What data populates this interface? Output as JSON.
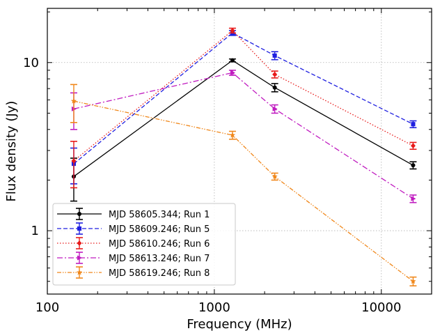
{
  "chart_data": {
    "type": "line",
    "title": "",
    "xlabel": "Frequency (MHz)",
    "ylabel": "Flux density (Jy)",
    "xscale": "log",
    "yscale": "log",
    "xlim": [
      100,
      20000
    ],
    "ylim": [
      0.42,
      21
    ],
    "x_ticks": [
      {
        "value": 100,
        "label": "100"
      },
      {
        "value": 1000,
        "label": "1000"
      },
      {
        "value": 10000,
        "label": "10000"
      }
    ],
    "y_ticks": [
      {
        "value": 1,
        "label": "1"
      },
      {
        "value": 10,
        "label": "10"
      }
    ],
    "grid": true,
    "legend_position": "lower-left",
    "series": [
      {
        "name": "MJD 58605.344; Run 1",
        "color": "#000000",
        "dash": "solid",
        "marker": "circle",
        "points": [
          {
            "x": 144,
            "y": 2.1,
            "yerr": [
              0.6,
              0.6
            ]
          },
          {
            "x": 1284,
            "y": 10.3,
            "yerr": [
              0.2,
              0.2
            ]
          },
          {
            "x": 2300,
            "y": 7.1,
            "yerr": [
              0.4,
              0.4
            ]
          },
          {
            "x": 15500,
            "y": 2.45,
            "yerr": [
              0.12,
              0.12
            ]
          }
        ]
      },
      {
        "name": "MJD 58609.246; Run 5",
        "color": "#1f1fe0",
        "dash": "dashed",
        "marker": "square",
        "points": [
          {
            "x": 144,
            "y": 2.5,
            "yerr": [
              0.6,
              0.6
            ]
          },
          {
            "x": 1284,
            "y": 15.0,
            "yerr": [
              0.5,
              0.5
            ]
          },
          {
            "x": 2300,
            "y": 11.0,
            "yerr": [
              0.6,
              0.6
            ]
          },
          {
            "x": 15500,
            "y": 4.3,
            "yerr": [
              0.2,
              0.2
            ]
          }
        ]
      },
      {
        "name": "MJD 58610.246; Run 6",
        "color": "#e81a1a",
        "dash": "dotted",
        "marker": "diamond",
        "points": [
          {
            "x": 144,
            "y": 2.6,
            "yerr": [
              0.8,
              0.8
            ]
          },
          {
            "x": 1284,
            "y": 15.5,
            "yerr": [
              0.5,
              0.5
            ]
          },
          {
            "x": 2300,
            "y": 8.5,
            "yerr": [
              0.4,
              0.4
            ]
          },
          {
            "x": 15500,
            "y": 3.2,
            "yerr": [
              0.15,
              0.15
            ]
          }
        ]
      },
      {
        "name": "MJD 58613.246; Run 7",
        "color": "#c01bc0",
        "dash": "dashdot",
        "marker": "triangle",
        "points": [
          {
            "x": 144,
            "y": 5.3,
            "yerr": [
              1.3,
              1.3
            ]
          },
          {
            "x": 1284,
            "y": 8.7,
            "yerr": [
              0.3,
              0.3
            ]
          },
          {
            "x": 2300,
            "y": 5.3,
            "yerr": [
              0.3,
              0.3
            ]
          },
          {
            "x": 15500,
            "y": 1.55,
            "yerr": [
              0.08,
              0.08
            ]
          }
        ]
      },
      {
        "name": "MJD 58619.246; Run 8",
        "color": "#f0871a",
        "dash": "dashdotdot",
        "marker": "star",
        "points": [
          {
            "x": 144,
            "y": 5.9,
            "yerr": [
              1.5,
              1.5
            ]
          },
          {
            "x": 1284,
            "y": 3.7,
            "yerr": [
              0.2,
              0.2
            ]
          },
          {
            "x": 2300,
            "y": 2.1,
            "yerr": [
              0.1,
              0.1
            ]
          },
          {
            "x": 15500,
            "y": 0.5,
            "yerr": [
              0.03,
              0.03
            ]
          }
        ]
      }
    ]
  }
}
